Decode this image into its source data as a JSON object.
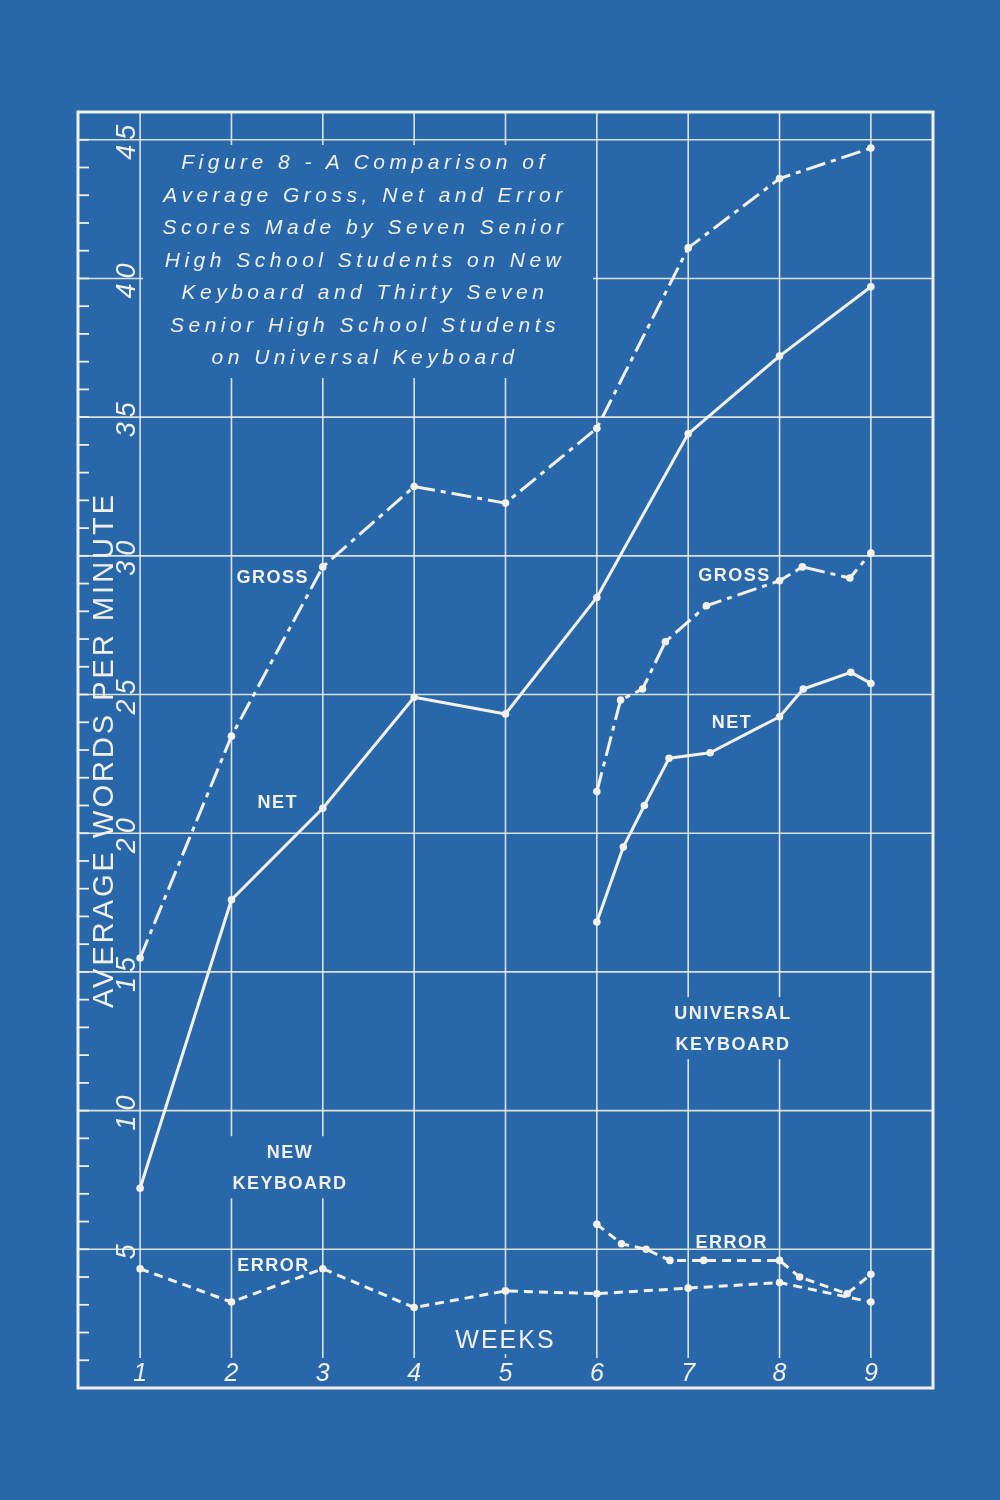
{
  "chart_data": {
    "type": "line",
    "title": "Figure 8 - A Comparison of Average Gross, Net and Error Scores Made by Seven Senior High School Students on New Keyboard and Thirty Seven Senior High School Students on Universal Keyboard",
    "xlabel": "WEEKS",
    "ylabel": "AVERAGE WORDS PER MINUTE",
    "xlim": [
      0.32,
      9.68
    ],
    "xticks": [
      1,
      2,
      3,
      4,
      5,
      6,
      7,
      8,
      9
    ],
    "ylim": [
      0,
      46
    ],
    "yticks": [
      {
        "value": 1,
        "label": null
      },
      {
        "value": 2,
        "label": null
      },
      {
        "value": 3,
        "label": null
      },
      {
        "value": 4,
        "label": null
      },
      5,
      {
        "value": 6,
        "label": null
      },
      {
        "value": 7,
        "label": null
      },
      {
        "value": 8,
        "label": null
      },
      {
        "value": 9,
        "label": null
      },
      10,
      {
        "value": 11,
        "label": null
      },
      {
        "value": 12,
        "label": null
      },
      {
        "value": 13,
        "label": null
      },
      {
        "value": 14,
        "label": null
      },
      15,
      {
        "value": 16,
        "label": null
      },
      {
        "value": 17,
        "label": null
      },
      {
        "value": 18,
        "label": null
      },
      {
        "value": 19,
        "label": null
      },
      20,
      {
        "value": 21,
        "label": null
      },
      {
        "value": 22,
        "label": null
      },
      {
        "value": 23,
        "label": null
      },
      {
        "value": 24,
        "label": null
      },
      25,
      {
        "value": 26,
        "label": null
      },
      {
        "value": 27,
        "label": null
      },
      {
        "value": 28,
        "label": null
      },
      {
        "value": 29,
        "label": null
      },
      30,
      {
        "value": 31,
        "label": null
      },
      {
        "value": 32,
        "label": null
      },
      {
        "value": 33,
        "label": null
      },
      {
        "value": 34,
        "label": null
      },
      35,
      {
        "value": 36,
        "label": null
      },
      {
        "value": 37,
        "label": null
      },
      {
        "value": 38,
        "label": null
      },
      {
        "value": 39,
        "label": null
      },
      40,
      {
        "value": 41,
        "label": null
      },
      {
        "value": 42,
        "label": null
      },
      {
        "value": 43,
        "label": null
      },
      {
        "value": 44,
        "label": null
      },
      45
    ],
    "grid": true,
    "marker": "circle",
    "series": [
      {
        "name": "GROSS",
        "color": "#f4f1ea",
        "line_style": "dashdot",
        "x": [
          1,
          2,
          3,
          4,
          5,
          6,
          7,
          8,
          9
        ],
        "values": [
          15.5,
          23.5,
          29.6,
          32.5,
          31.9,
          34.6,
          41.1,
          43.6,
          44.7
        ]
      },
      {
        "name": "NET",
        "color": "#f4f1ea",
        "line_style": "solid",
        "x": [
          1,
          2,
          3,
          4,
          5,
          6,
          7,
          8,
          9
        ],
        "values": [
          7.2,
          17.6,
          20.9,
          24.9,
          24.3,
          28.5,
          34.4,
          37.2,
          39.7
        ]
      },
      {
        "name": "ERROR",
        "color": "#f4f1ea",
        "line_style": "dashed",
        "x": [
          1,
          2,
          3,
          4,
          5,
          6,
          7,
          8,
          9
        ],
        "values": [
          4.3,
          3.1,
          4.3,
          2.9,
          3.5,
          3.4,
          3.6,
          3.8,
          3.1
        ]
      },
      {
        "name": "GROSS",
        "color": "#f4f1ea",
        "line_style": "dashdot",
        "x": [
          6,
          6.26,
          6.5,
          6.75,
          7.2,
          8,
          8.25,
          8.77,
          9
        ],
        "values": [
          21.5,
          24.8,
          25.2,
          26.9,
          28.2,
          29.1,
          29.6,
          29.2,
          30.1
        ]
      },
      {
        "name": "NET",
        "color": "#f4f1ea",
        "line_style": "solid",
        "x": [
          6,
          6.29,
          6.52,
          6.79,
          7.24,
          8,
          8.26,
          8.78,
          9
        ],
        "values": [
          16.8,
          19.5,
          21,
          22.7,
          22.9,
          24.2,
          25.2,
          25.8,
          25.4
        ]
      },
      {
        "name": "ERROR",
        "color": "#f4f1ea",
        "line_style": "dashed",
        "x": [
          6,
          6.27,
          6.54,
          6.8,
          7.17,
          8,
          8.22,
          8.74,
          9
        ],
        "values": [
          5.9,
          5.2,
          5,
          4.6,
          4.6,
          4.6,
          4,
          3.4,
          4.1
        ]
      }
    ],
    "annotations": [
      "NEW KEYBOARD",
      "UNIVERSAL KEYBOARD"
    ]
  }
}
